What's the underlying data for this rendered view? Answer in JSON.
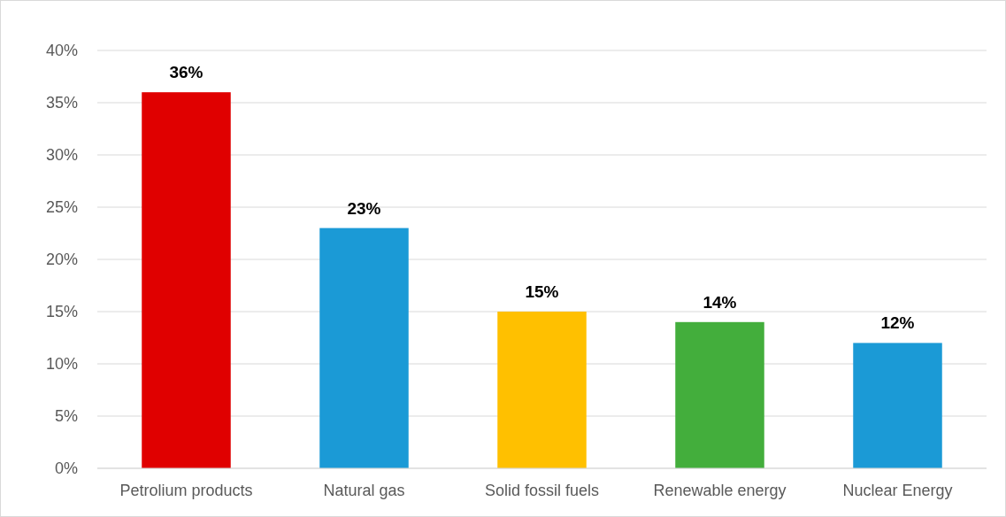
{
  "chart_data": {
    "type": "bar",
    "categories": [
      "Petrolium products",
      "Natural gas",
      "Solid fossil fuels",
      "Renewable energy",
      "Nuclear Energy"
    ],
    "values": [
      36,
      23,
      15,
      14,
      12
    ],
    "colors": [
      "#e00000",
      "#1b9ad6",
      "#ffc000",
      "#43ae3c",
      "#1b9ad6"
    ],
    "value_labels": [
      "36%",
      "23%",
      "15%",
      "14%",
      "12%"
    ],
    "ylim": [
      0,
      40
    ],
    "yticks": [
      {
        "value": 0,
        "label": "0%"
      },
      {
        "value": 5,
        "label": "5%"
      },
      {
        "value": 10,
        "label": "10%"
      },
      {
        "value": 15,
        "label": "15%"
      },
      {
        "value": 20,
        "label": "20%"
      },
      {
        "value": 25,
        "label": "25%"
      },
      {
        "value": 30,
        "label": "30%"
      },
      {
        "value": 35,
        "label": "35%"
      },
      {
        "value": 40,
        "label": "40%"
      }
    ],
    "grid": "y"
  }
}
